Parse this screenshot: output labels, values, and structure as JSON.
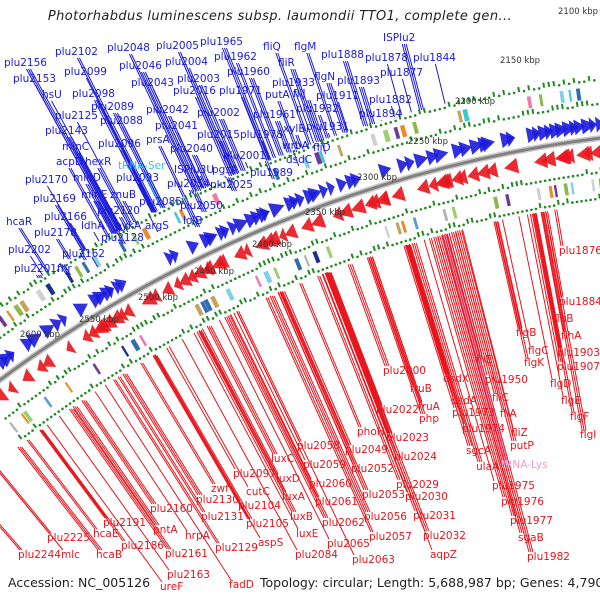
{
  "title": "Photorhabdus luminescens subsp. laumondii TTO1, complete gen...",
  "accession_label": "Accession: NC_005126",
  "summary_label": "Topology: circular; Length: 5,688,987 bp; Genes: 4,790",
  "colors": {
    "forward_strand": "#1a1adb",
    "reverse_strand": "#e8141c",
    "trna_forward": "#33c6e8",
    "trna_reverse": "#f09ad0",
    "backbone": "#808080",
    "gc_skew_marker": "#1f8a1f"
  },
  "kbp_ticks": [
    "2100 kbp",
    "2150 kbp",
    "2200 kbp",
    "2250 kbp",
    "2300 kbp",
    "2350 kbp",
    "2400 kbp",
    "2450 kbp",
    "2500 kbp",
    "2550 kbp",
    "2600 kbp"
  ],
  "forward_labels": [
    "plu2156",
    "plu2102",
    "plu2048",
    "plu2005",
    "plu1965",
    "fliQ",
    "flgM",
    "plu1888",
    "ISPlu2",
    "plu1878",
    "plu1844",
    "plu2153",
    "plu2099",
    "plu2046",
    "plu2004",
    "plu1962",
    "fliR",
    "plu1893",
    "plu1877",
    "hsU",
    "plu2098",
    "plu2043",
    "plu2003",
    "plu1960",
    "flgN",
    "plu1933",
    "plu2125",
    "plu2089",
    "plu2016",
    "plu1971",
    "putA",
    "fliJ",
    "plu1911",
    "plu1882",
    "plu2143",
    "plu2088",
    "plu2042",
    "plu2002",
    "plu1961",
    "plu1932",
    "plu1894",
    "minC",
    "plu2096",
    "plu2041",
    "plu2015",
    "plu1978",
    "xylB",
    "plu1931",
    "acpD",
    "hexR",
    "tRNA-Ser",
    "prsA",
    "plu2040",
    "plu2001",
    "wrbA",
    "fliD",
    "plu2170",
    "minD",
    "plu2093",
    "ISPlu3U",
    "pgsA",
    "plu1989",
    "dsdC",
    "plu2169",
    "minE",
    "znuB",
    "plu2085",
    "plu2054",
    "plu2025",
    "plu2166",
    "plu2120",
    "plu2050",
    "hcaR",
    "plu2178",
    "ldhA",
    "pykA",
    "argS",
    "lolB",
    "plu2202",
    "plu2162",
    "plu2128",
    "plu2201",
    "fnr"
  ],
  "reverse_labels": [
    "plu1876",
    "plu1884",
    "flhB",
    "flhA",
    "flgB",
    "flgC",
    "plu1903",
    "flgK",
    "plu1907",
    "flgD",
    "flgE",
    "flgF",
    "flgI",
    "fliE",
    "plu1950",
    "plu2000",
    "dsdX",
    "fruB",
    "fliC",
    "dsdA",
    "fruA",
    "plu1973",
    "fliA",
    "plu2022",
    "php",
    "plu1974",
    "fliZ",
    "putP",
    "phoH",
    "plu2023",
    "plu2058",
    "plu2049",
    "plu2024",
    "sgcA",
    "tRNA-Lys",
    "ulaA",
    "luxC",
    "plu2097",
    "plu2059",
    "plu2052",
    "plu1975",
    "zwf",
    "cutC",
    "luxD",
    "plu2060",
    "plu2029",
    "plu1976",
    "plu2130",
    "plu2104",
    "luxA",
    "plu2053",
    "plu2030",
    "plu2160",
    "plu2131",
    "plu2105",
    "luxB",
    "plu2061",
    "plu2056",
    "plu2031",
    "plu1977",
    "plu2191",
    "pntA",
    "hrpA",
    "plu2129",
    "aspS",
    "luxE",
    "plu2062",
    "plu2065",
    "plu2057",
    "plu2032",
    "sgaB",
    "plu2225",
    "hcaE",
    "plu2186",
    "plu2161",
    "plu2084",
    "plu2063",
    "aqpZ",
    "plu1982",
    "plu2244",
    "mlc",
    "hcaB",
    "plu2163",
    "ureF",
    "fadD"
  ]
}
